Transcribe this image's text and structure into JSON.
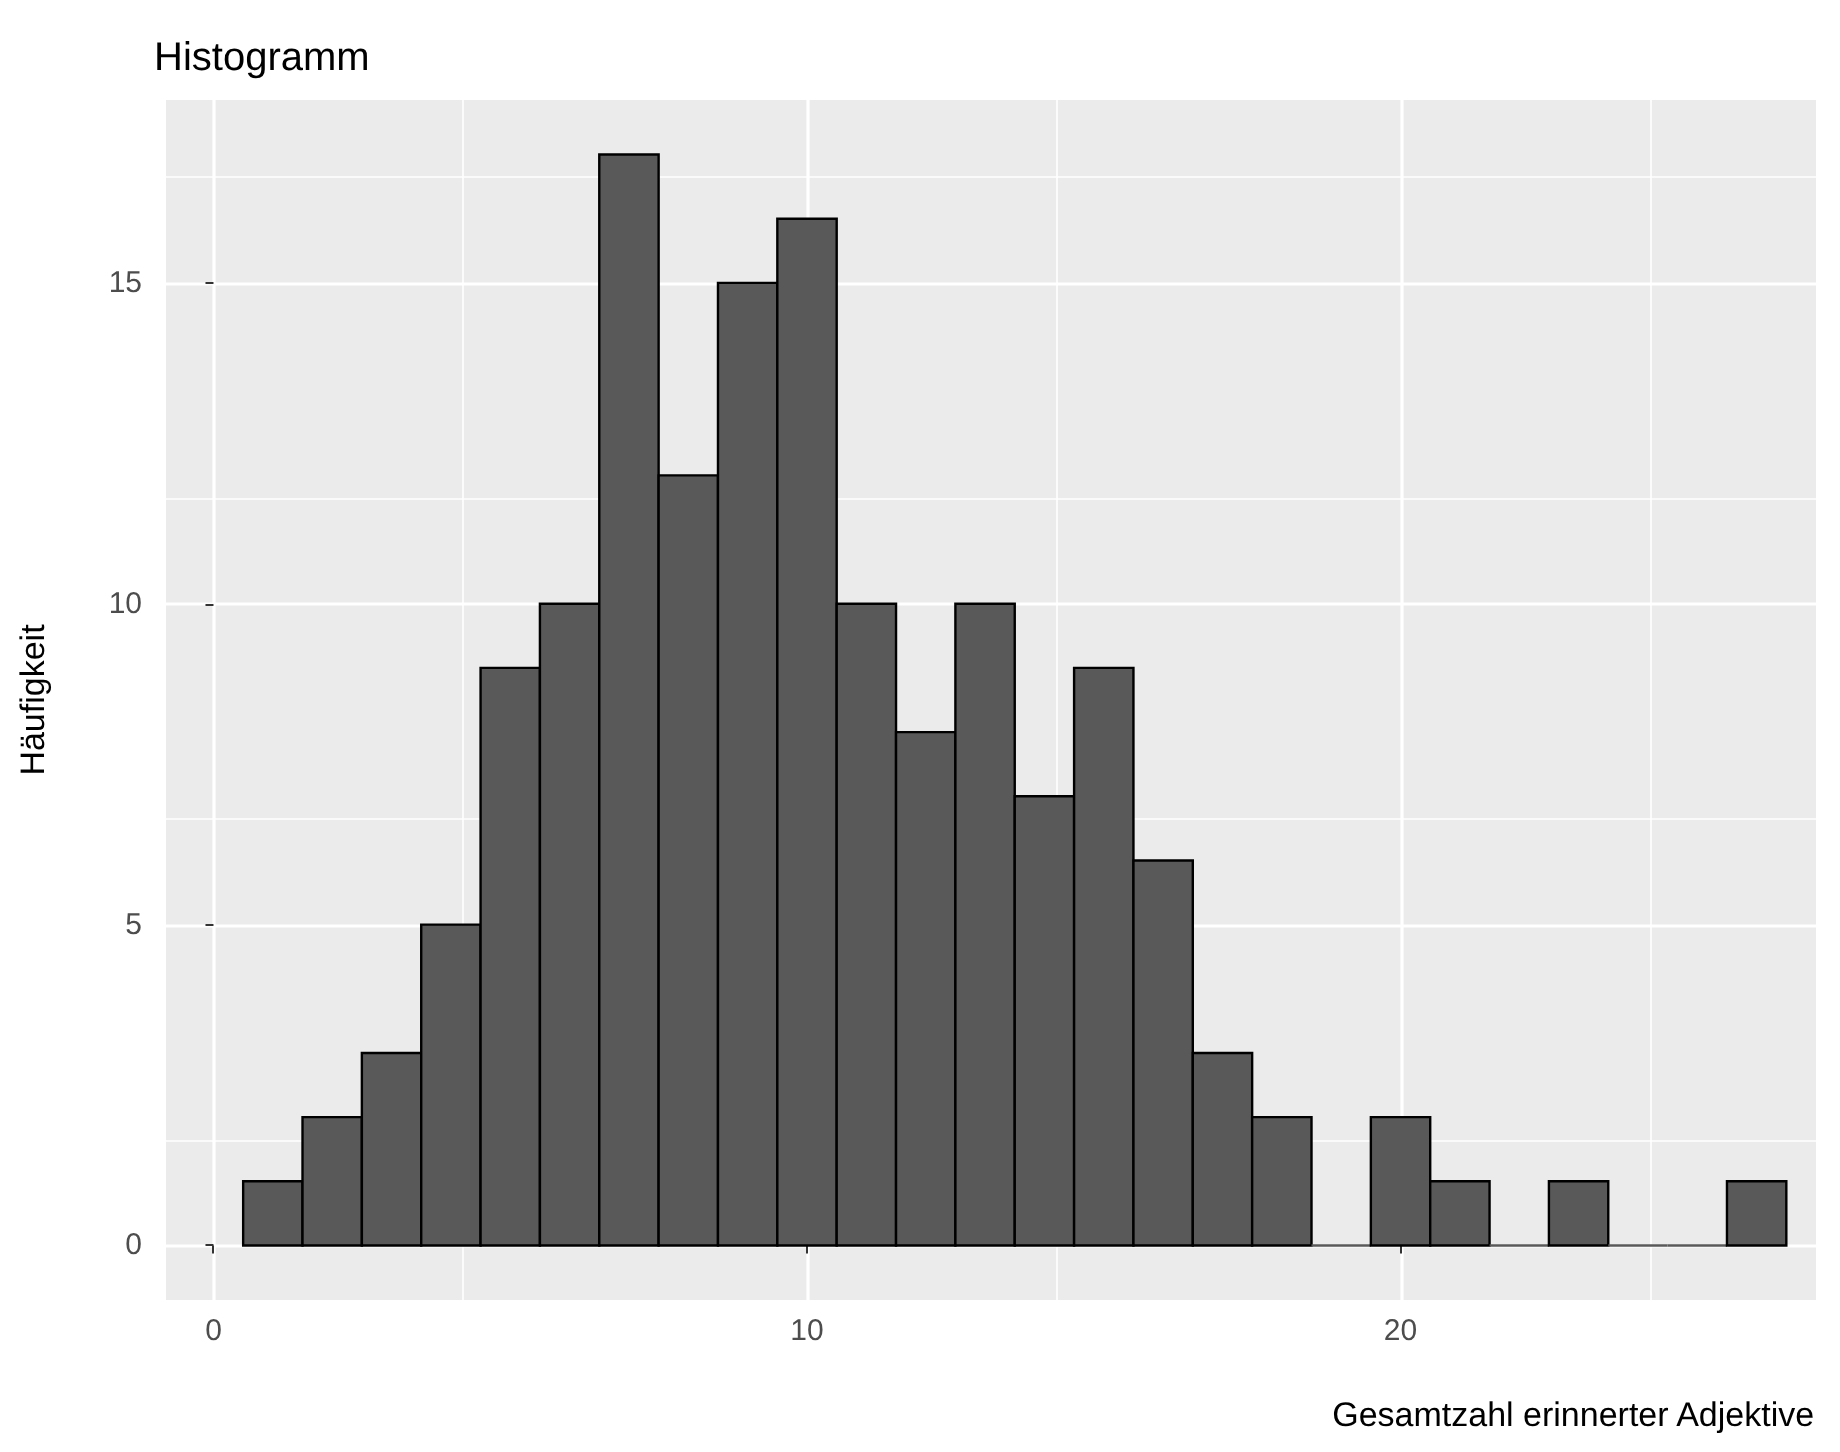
{
  "chart_data": {
    "type": "histogram",
    "title": "Histogramm",
    "xlabel": "Gesamtzahl erinnerter Adjektive",
    "ylabel": "Häufigkeit",
    "bins": [
      0.5,
      1.5,
      2.5,
      3.5,
      4.5,
      5.5,
      6.5,
      7.5,
      8.5,
      9.5,
      10.5,
      11.5,
      12.5,
      13.5,
      14.5,
      15.5,
      16.5,
      17.5,
      18.5,
      19.5,
      20.5,
      21.5,
      22.5,
      23.5,
      24.5,
      25.5,
      26.5
    ],
    "values": [
      1,
      2,
      3,
      5,
      9,
      10,
      17,
      12,
      15,
      16,
      10,
      8,
      10,
      7,
      9,
      6,
      3,
      2,
      0,
      2,
      1,
      0,
      1,
      0,
      0,
      1
    ],
    "color": "#595959",
    "xlim": [
      -0.8,
      27.0
    ],
    "xticks": [
      0,
      10,
      20
    ],
    "ylim": [
      -0.85,
      17.85
    ],
    "yticks": [
      0,
      5,
      10,
      15
    ],
    "grid": true
  }
}
